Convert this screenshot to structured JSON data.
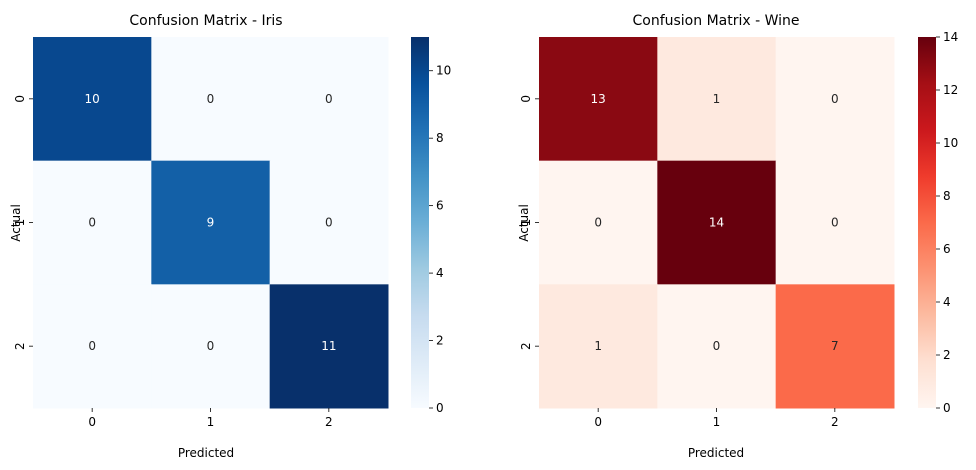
{
  "chart_data": [
    {
      "type": "heatmap",
      "title": "Confusion Matrix - Iris",
      "xlabel": "Predicted",
      "ylabel": "Actual",
      "x_categories": [
        "0",
        "1",
        "2"
      ],
      "y_categories": [
        "0",
        "1",
        "2"
      ],
      "values": [
        [
          10,
          0,
          0
        ],
        [
          0,
          9,
          0
        ],
        [
          0,
          0,
          11
        ]
      ],
      "colormap": "Blues",
      "colorbar_range": [
        0,
        11
      ],
      "colorbar_ticks": [
        0,
        2,
        4,
        6,
        8,
        10
      ],
      "annot": true
    },
    {
      "type": "heatmap",
      "title": "Confusion Matrix - Wine",
      "xlabel": "Predicted",
      "ylabel": "Actual",
      "x_categories": [
        "0",
        "1",
        "2"
      ],
      "y_categories": [
        "0",
        "1",
        "2"
      ],
      "values": [
        [
          13,
          1,
          0
        ],
        [
          0,
          14,
          0
        ],
        [
          1,
          0,
          7
        ]
      ],
      "colormap": "Reds",
      "colorbar_range": [
        0,
        14
      ],
      "colorbar_ticks": [
        0,
        2,
        4,
        6,
        8,
        10,
        12,
        14
      ],
      "annot": true
    }
  ]
}
